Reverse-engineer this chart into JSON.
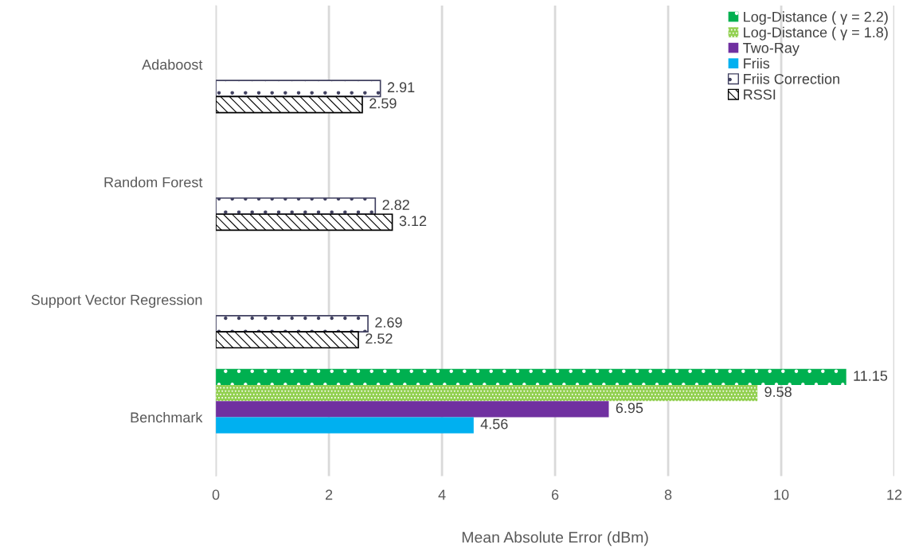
{
  "chart_data": {
    "type": "bar",
    "orientation": "horizontal",
    "xlabel": "Mean Absolute Error (dBm)",
    "categories": [
      "Adaboost",
      "Random Forest",
      "Support Vector Regression",
      "Benchmark"
    ],
    "series": [
      {
        "name": "Log-Distance ( γ = 2.2)",
        "color": "#00b050",
        "values": [
          null,
          null,
          null,
          11.15
        ]
      },
      {
        "name": "Log-Distance ( γ = 1.8)",
        "color": "#92d050",
        "values": [
          null,
          null,
          null,
          9.58
        ]
      },
      {
        "name": "Two-Ray",
        "color": "#7030a0",
        "values": [
          null,
          null,
          null,
          6.95
        ]
      },
      {
        "name": "Friis",
        "color": "#00b0f0",
        "values": [
          null,
          null,
          null,
          4.56
        ]
      },
      {
        "name": "Friis Correction",
        "color": "#404060",
        "values": [
          2.91,
          2.82,
          2.69,
          null
        ]
      },
      {
        "name": "RSSI",
        "color": "#000000",
        "values": [
          2.59,
          3.12,
          2.52,
          null
        ]
      }
    ],
    "xlim": [
      0,
      12
    ],
    "xticks": [
      0,
      2,
      4,
      6,
      8,
      10,
      12
    ],
    "grid": "x",
    "legend": "top right",
    "data_labels": true
  }
}
